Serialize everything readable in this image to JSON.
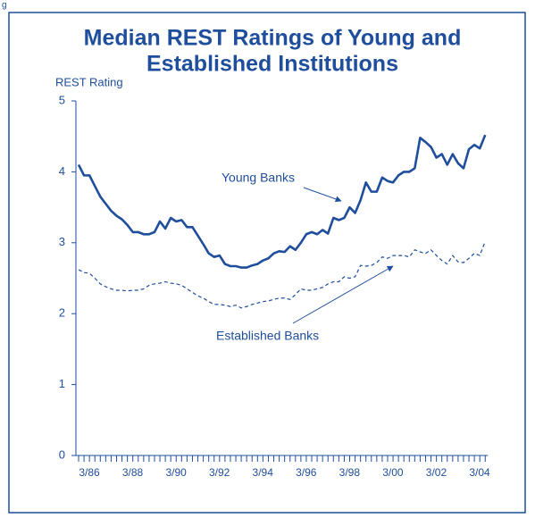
{
  "fragment": "g",
  "chart_data": {
    "type": "line",
    "title": [
      "Median REST Ratings of Young and",
      "Established Institutions"
    ],
    "y_label": "REST Rating",
    "categories": [
      "3/86",
      null,
      null,
      null,
      null,
      null,
      null,
      null,
      "3/88",
      null,
      null,
      null,
      null,
      null,
      null,
      null,
      "3/90",
      null,
      null,
      null,
      null,
      null,
      null,
      null,
      "3/92",
      null,
      null,
      null,
      null,
      null,
      null,
      null,
      "3/94",
      null,
      null,
      null,
      null,
      null,
      null,
      null,
      "3/96",
      null,
      null,
      null,
      null,
      null,
      null,
      null,
      "3/98",
      null,
      null,
      null,
      null,
      null,
      null,
      null,
      "3/00",
      null,
      null,
      null,
      null,
      null,
      null,
      null,
      "3/02",
      null,
      null,
      null,
      null,
      null,
      null,
      null,
      "3/04",
      null,
      null,
      null
    ],
    "series": [
      {
        "name": "Young Banks",
        "color": "#1f4e9c",
        "line_style": "solid",
        "values": [
          4.1,
          3.95,
          3.95,
          3.8,
          3.65,
          3.55,
          3.45,
          3.38,
          3.33,
          3.25,
          3.15,
          3.15,
          3.12,
          3.12,
          3.15,
          3.3,
          3.2,
          3.35,
          3.3,
          3.32,
          3.22,
          3.22,
          3.1,
          2.98,
          2.85,
          2.8,
          2.82,
          2.7,
          2.67,
          2.67,
          2.65,
          2.65,
          2.68,
          2.7,
          2.75,
          2.78,
          2.85,
          2.88,
          2.87,
          2.95,
          2.9,
          3.0,
          3.12,
          3.15,
          3.12,
          3.18,
          3.13,
          3.35,
          3.32,
          3.35,
          3.5,
          3.42,
          3.6,
          3.85,
          3.72,
          3.72,
          3.92,
          3.87,
          3.85,
          3.95,
          4.0,
          4.0,
          4.05,
          4.48,
          4.42,
          4.35,
          4.2,
          4.25,
          4.1,
          4.25,
          4.12,
          4.05,
          4.32,
          4.38,
          4.33,
          4.52
        ]
      },
      {
        "name": "Established Banks",
        "color": "#1f4e9c",
        "line_style": "dashed",
        "values": [
          2.62,
          2.58,
          2.57,
          2.5,
          2.42,
          2.38,
          2.35,
          2.33,
          2.33,
          2.32,
          2.33,
          2.33,
          2.35,
          2.4,
          2.42,
          2.43,
          2.45,
          2.43,
          2.42,
          2.4,
          2.35,
          2.3,
          2.25,
          2.22,
          2.17,
          2.13,
          2.13,
          2.12,
          2.1,
          2.12,
          2.08,
          2.1,
          2.13,
          2.15,
          2.17,
          2.18,
          2.2,
          2.22,
          2.22,
          2.2,
          2.27,
          2.35,
          2.33,
          2.33,
          2.35,
          2.37,
          2.42,
          2.45,
          2.45,
          2.52,
          2.5,
          2.52,
          2.68,
          2.67,
          2.68,
          2.72,
          2.8,
          2.78,
          2.82,
          2.82,
          2.82,
          2.8,
          2.9,
          2.87,
          2.85,
          2.9,
          2.82,
          2.75,
          2.7,
          2.82,
          2.73,
          2.72,
          2.78,
          2.85,
          2.82,
          3.02
        ]
      }
    ],
    "ylim": [
      0,
      5
    ],
    "yticks": [
      0,
      1,
      2,
      3,
      4,
      5
    ],
    "annotations": [
      "Young Banks",
      "Established Banks"
    ]
  }
}
